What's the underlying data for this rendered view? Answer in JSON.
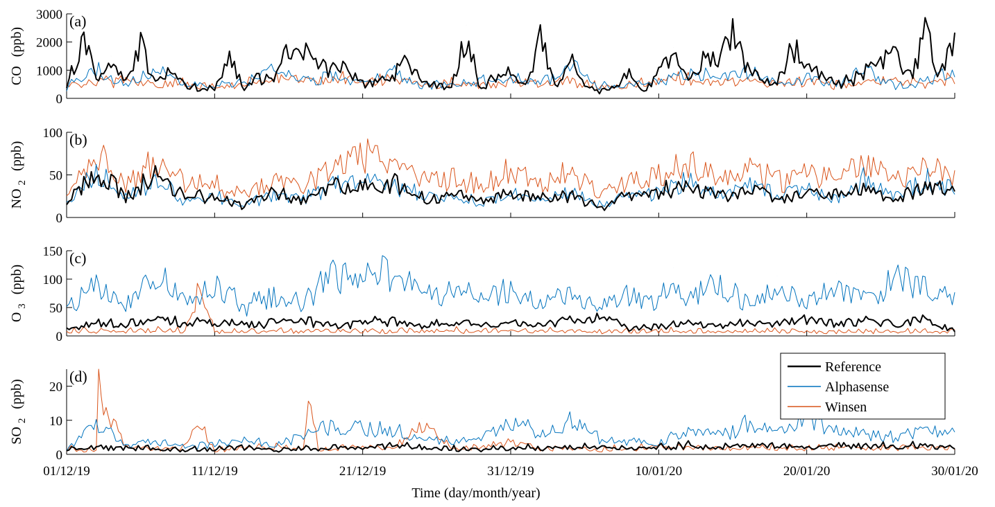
{
  "chart_data": {
    "type": "line",
    "xlabel": "Time (day/month/year)",
    "x_tick_labels": [
      "01/12/19",
      "11/12/19",
      "21/12/19",
      "31/12/19",
      "10/01/20",
      "20/01/20",
      "30/01/20"
    ],
    "x_range_days": [
      0,
      60
    ],
    "series_names": [
      "Reference",
      "Alphasense",
      "Winsen"
    ],
    "series_colors": {
      "Reference": "#000000",
      "Alphasense": "#0072BD",
      "Winsen": "#D95319"
    },
    "legend_position": "top-right of panel (d)",
    "grid": false,
    "panels": [
      {
        "panel_label": "(a)",
        "ylabel_main": "CO",
        "ylabel_sub": "",
        "ylabel_unit": "(ppb)",
        "ylim": [
          0,
          3000
        ],
        "yticks": [
          0,
          1000,
          2000,
          3000
        ],
        "series": [
          {
            "name": "Reference",
            "x": [
              0,
              1.5,
              2,
              3,
              4,
              5,
              6,
              7,
              8,
              9,
              10,
              11,
              12,
              13,
              14,
              15,
              16,
              17,
              18,
              19,
              20,
              21,
              22,
              23,
              24,
              25,
              26,
              27,
              28,
              29,
              29.5,
              30,
              31,
              32,
              33,
              34,
              35,
              36,
              37,
              38,
              39,
              40,
              41,
              42,
              43,
              44,
              45,
              46,
              47,
              48,
              49,
              50,
              51,
              52,
              53,
              54,
              55,
              56,
              57,
              58,
              59,
              60
            ],
            "y": [
              500,
              3000,
              900,
              1500,
              700,
              2300,
              600,
              1100,
              500,
              400,
              350,
              1700,
              500,
              800,
              700,
              2100,
              2000,
              1200,
              1400,
              1100,
              600,
              700,
              800,
              1700,
              600,
              500,
              450,
              2600,
              300,
              900,
              1000,
              1000,
              550,
              2700,
              400,
              1700,
              550,
              200,
              450,
              950,
              200,
              1100,
              1800,
              700,
              1600,
              1800,
              2600,
              1200,
              800,
              600,
              2300,
              1100,
              900,
              600,
              700,
              1200,
              1500,
              1900,
              800,
              2800,
              1100,
              2500
            ]
          },
          {
            "name": "Alphasense",
            "x": [
              0,
              2,
              4,
              6,
              8,
              10,
              12,
              14,
              16,
              18,
              20,
              22,
              24,
              26,
              28,
              30,
              32,
              34,
              36,
              38,
              40,
              42,
              44,
              46,
              48,
              50,
              52,
              54,
              56,
              58,
              60
            ],
            "y": [
              400,
              1200,
              500,
              1300,
              500,
              450,
              600,
              1200,
              700,
              900,
              600,
              1200,
              500,
              450,
              700,
              900,
              600,
              1300,
              400,
              500,
              700,
              1000,
              800,
              1200,
              500,
              800,
              600,
              1300,
              500,
              700,
              1100
            ]
          },
          {
            "name": "Winsen",
            "x": [
              0,
              2,
              4,
              6,
              8,
              10,
              12,
              14,
              16,
              18,
              20,
              22,
              24,
              26,
              28,
              30,
              32,
              34,
              36,
              38,
              40,
              42,
              44,
              46,
              48,
              50,
              52,
              54,
              56,
              58,
              60
            ],
            "y": [
              500,
              600,
              700,
              500,
              600,
              400,
              500,
              900,
              700,
              800,
              600,
              700,
              500,
              600,
              500,
              700,
              600,
              700,
              400,
              500,
              700,
              800,
              600,
              700,
              600,
              700,
              500,
              600,
              700,
              600,
              800
            ]
          }
        ]
      },
      {
        "panel_label": "(b)",
        "ylabel_main": "NO",
        "ylabel_sub": "2",
        "ylabel_unit": "(ppb)",
        "ylim": [
          0,
          100
        ],
        "yticks": [
          0,
          50,
          100
        ],
        "series": [
          {
            "name": "Reference",
            "x": [
              0,
              2,
              4,
              6,
              8,
              10,
              12,
              14,
              16,
              18,
              20,
              22,
              24,
              26,
              28,
              30,
              32,
              34,
              36,
              38,
              40,
              42,
              44,
              46,
              48,
              50,
              52,
              54,
              56,
              58,
              60
            ],
            "y": [
              20,
              65,
              30,
              55,
              25,
              30,
              15,
              35,
              20,
              45,
              40,
              48,
              25,
              30,
              20,
              35,
              25,
              30,
              10,
              30,
              35,
              45,
              30,
              40,
              25,
              35,
              30,
              40,
              25,
              45,
              35
            ]
          },
          {
            "name": "Alphasense",
            "x": [
              0,
              2,
              4,
              6,
              8,
              10,
              12,
              14,
              16,
              18,
              20,
              22,
              24,
              26,
              28,
              30,
              32,
              34,
              36,
              38,
              40,
              42,
              44,
              46,
              48,
              50,
              52,
              54,
              56,
              58,
              60
            ],
            "y": [
              15,
              60,
              25,
              55,
              20,
              30,
              15,
              30,
              25,
              45,
              50,
              45,
              30,
              25,
              20,
              30,
              20,
              35,
              15,
              25,
              35,
              55,
              30,
              45,
              30,
              40,
              25,
              55,
              30,
              50,
              40
            ]
          },
          {
            "name": "Winsen",
            "x": [
              0,
              2,
              4,
              6,
              8,
              10,
              12,
              14,
              16,
              18,
              20,
              22,
              24,
              26,
              28,
              30,
              32,
              34,
              36,
              38,
              40,
              42,
              44,
              46,
              48,
              50,
              52,
              54,
              56,
              58,
              60
            ],
            "y": [
              25,
              90,
              45,
              85,
              50,
              45,
              30,
              50,
              40,
              70,
              85,
              75,
              50,
              55,
              45,
              65,
              50,
              60,
              35,
              50,
              60,
              75,
              55,
              70,
              50,
              60,
              55,
              75,
              50,
              70,
              50
            ]
          }
        ]
      },
      {
        "panel_label": "(c)",
        "ylabel_main": "O",
        "ylabel_sub": "3",
        "ylabel_unit": "(ppb)",
        "ylim": [
          0,
          150
        ],
        "yticks": [
          0,
          50,
          100,
          150
        ],
        "series": [
          {
            "name": "Reference",
            "x": [
              0,
              2,
              4,
              6,
              8,
              10,
              12,
              14,
              16,
              18,
              20,
              22,
              24,
              26,
              28,
              30,
              32,
              34,
              36,
              38,
              40,
              42,
              44,
              46,
              48,
              50,
              52,
              54,
              56,
              58,
              60
            ],
            "y": [
              10,
              30,
              20,
              35,
              25,
              30,
              20,
              25,
              30,
              20,
              25,
              30,
              20,
              25,
              20,
              25,
              20,
              30,
              40,
              10,
              15,
              25,
              20,
              25,
              20,
              30,
              25,
              30,
              20,
              35,
              5
            ]
          },
          {
            "name": "Alphasense",
            "x": [
              0,
              2,
              4,
              6,
              8,
              10,
              12,
              14,
              16,
              18,
              20,
              22,
              24,
              26,
              28,
              30,
              32,
              34,
              36,
              38,
              40,
              41,
              42,
              44,
              46,
              48,
              50,
              52,
              54,
              56,
              58,
              60
            ],
            "y": [
              50,
              110,
              60,
              130,
              70,
              110,
              60,
              80,
              70,
              130,
              125,
              135,
              90,
              95,
              85,
              100,
              70,
              90,
              60,
              80,
              70,
              120,
              80,
              110,
              70,
              105,
              75,
              110,
              80,
              120,
              100,
              70
            ]
          },
          {
            "name": "Winsen",
            "x": [
              0,
              2,
              4,
              6,
              8,
              9,
              10,
              12,
              14,
              16,
              18,
              20,
              22,
              24,
              26,
              28,
              30,
              32,
              34,
              36,
              38,
              40,
              42,
              44,
              46,
              48,
              50,
              52,
              54,
              56,
              58,
              60
            ],
            "y": [
              5,
              8,
              6,
              7,
              6,
              100,
              6,
              5,
              7,
              6,
              8,
              7,
              6,
              5,
              7,
              6,
              8,
              6,
              7,
              5,
              6,
              7,
              6,
              5,
              6,
              7,
              6,
              5,
              6,
              7,
              6,
              5
            ]
          }
        ]
      },
      {
        "panel_label": "(d)",
        "ylabel_main": "SO",
        "ylabel_sub": "2",
        "ylabel_unit": "(ppb)",
        "ylim": [
          0,
          25
        ],
        "yticks": [
          0,
          10,
          20
        ],
        "series": [
          {
            "name": "Reference",
            "x": [
              0,
              2,
              4,
              6,
              8,
              10,
              12,
              14,
              16,
              18,
              20,
              22,
              24,
              26,
              28,
              30,
              32,
              34,
              36,
              38,
              40,
              42,
              44,
              46,
              48,
              50,
              52,
              54,
              56,
              58,
              60
            ],
            "y": [
              1,
              2,
              1.5,
              1.5,
              1,
              1.5,
              2,
              1,
              1.5,
              2,
              2,
              2.5,
              2,
              1.5,
              1,
              2,
              1.5,
              2,
              2,
              1.5,
              2,
              2.5,
              2,
              3,
              2.5,
              2,
              3,
              2.5,
              2,
              2.5,
              2
            ]
          },
          {
            "name": "Alphasense",
            "x": [
              0,
              2,
              4,
              6,
              8,
              10,
              12,
              14,
              16,
              18,
              20,
              22,
              24,
              26,
              28,
              30,
              32,
              34,
              36,
              38,
              40,
              42,
              44,
              46,
              48,
              50,
              52,
              54,
              56,
              58,
              60
            ],
            "y": [
              1,
              11,
              3,
              4,
              2,
              3,
              5,
              3,
              6,
              10,
              9,
              8,
              5,
              4,
              6,
              11,
              7,
              12,
              5,
              4,
              3,
              8,
              6,
              10,
              7,
              13,
              8,
              7,
              6,
              9,
              7
            ]
          },
          {
            "name": "Winsen",
            "x": [
              0,
              2,
              2.1,
              4,
              6,
              8,
              9,
              10,
              12,
              14,
              16,
              16.5,
              17,
              18,
              20,
              22,
              24,
              26,
              28,
              30,
              32,
              34,
              36,
              38,
              40,
              42,
              44,
              46,
              48,
              50,
              52,
              54,
              56,
              58,
              60
            ],
            "y": [
              1,
              1,
              24,
              2,
              1.5,
              1.5,
              11,
              1,
              1.5,
              2,
              1.5,
              23.5,
              1,
              1.5,
              2,
              1.5,
              10.5,
              1.5,
              1.5,
              4,
              1.5,
              1.5,
              1,
              1.5,
              2,
              1.5,
              1.5,
              2,
              1.5,
              1.5,
              2,
              1.5,
              1.5,
              2,
              1.5
            ]
          }
        ]
      }
    ]
  }
}
